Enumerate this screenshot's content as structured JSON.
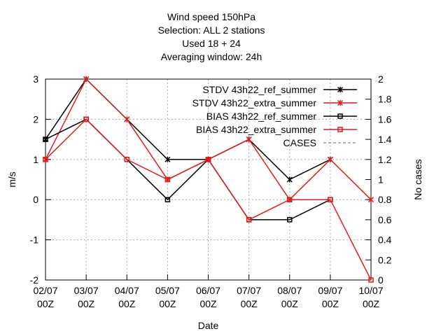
{
  "chart_data": {
    "type": "line",
    "title": [
      "Wind speed 150hPa",
      "Selection: ALL       2 stations",
      "Used  18  + 24",
      "Averaging window: 24h"
    ],
    "xlabel": "Date",
    "ylabel": "m/s",
    "y2label": "No cases",
    "categories": [
      "02/07\n00Z",
      "03/07\n00Z",
      "04/07\n00Z",
      "05/07\n00Z",
      "06/07\n00Z",
      "07/07\n00Z",
      "08/07\n00Z",
      "09/07\n00Z",
      "10/07\n00Z"
    ],
    "ylim": [
      -2,
      3
    ],
    "yticks": [
      -2,
      -1,
      0,
      1,
      2,
      3
    ],
    "y2lim": [
      0,
      2
    ],
    "y2ticks": [
      0,
      0.2,
      0.4,
      0.6,
      0.8,
      1,
      1.2,
      1.4,
      1.6,
      1.8,
      2
    ],
    "grid": true,
    "legend": "top-right",
    "series": [
      {
        "name": "STDV 43h22_ref_summer",
        "color": "#000000",
        "marker": "cross",
        "values": [
          1.5,
          3,
          2,
          1,
          1,
          1.5,
          0.5,
          1,
          null
        ]
      },
      {
        "name": "STDV 43h22_extra_summer",
        "color": "#e41a1c",
        "marker": "cross",
        "values": [
          1,
          3,
          2,
          0.5,
          1,
          1.5,
          0,
          1,
          0
        ]
      },
      {
        "name": "BIAS 43h22_ref_summer",
        "color": "#000000",
        "marker": "square",
        "values": [
          1.5,
          2,
          1,
          0,
          1,
          -0.5,
          -0.5,
          0,
          null
        ]
      },
      {
        "name": "BIAS 43h22_extra_summer",
        "color": "#e41a1c",
        "marker": "square",
        "values": [
          1,
          2,
          1,
          0.5,
          1,
          -0.5,
          0,
          0,
          -2
        ]
      },
      {
        "name": "CASES",
        "color": "#999999",
        "marker": "dash",
        "axis": "y2",
        "values": [
          null,
          null,
          null,
          null,
          null,
          null,
          null,
          null,
          null
        ]
      }
    ]
  }
}
